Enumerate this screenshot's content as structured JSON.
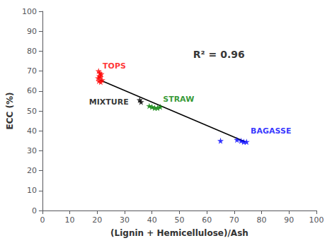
{
  "chart_data": {
    "type": "scatter",
    "xlabel": "(Lignin + Hemicellulose)/Ash",
    "ylabel": "ECC (%)",
    "xlim": [
      0,
      100
    ],
    "ylim": [
      0,
      100
    ],
    "xticks": [
      0,
      10,
      20,
      30,
      40,
      50,
      60,
      70,
      80,
      90,
      100
    ],
    "yticks": [
      0,
      10,
      20,
      30,
      40,
      50,
      60,
      70,
      80,
      90,
      100
    ],
    "grid": false,
    "series": [
      {
        "type": "line",
        "color": "black",
        "line_style": "solid",
        "x": [
          21.0,
          74.0
        ],
        "y": [
          65.5,
          34.5
        ]
      },
      {
        "type": "scatter",
        "marker": "star",
        "color": "red",
        "x": [
          20.5,
          21.0,
          21.5,
          20.8,
          21.2,
          20.3,
          21.8,
          20.6,
          21.3
        ],
        "y": [
          70.0,
          69.0,
          68.5,
          67.5,
          67.0,
          66.5,
          65.5,
          65.0,
          64.5
        ]
      },
      {
        "type": "scatter",
        "marker": "star",
        "color": "black",
        "x": [
          35.5,
          36.0
        ],
        "y": [
          55.5,
          54.5
        ]
      },
      {
        "type": "scatter",
        "marker": "star",
        "color": "green",
        "x": [
          39.0,
          40.0,
          41.0,
          42.0,
          43.0
        ],
        "y": [
          52.5,
          52.0,
          51.5,
          51.5,
          52.0
        ]
      },
      {
        "type": "scatter",
        "marker": "star",
        "color": "blue",
        "x": [
          65.0,
          71.0,
          72.5,
          73.5,
          74.5
        ],
        "y": [
          35.0,
          35.5,
          35.0,
          34.5,
          34.5
        ]
      }
    ],
    "annotations": [
      {
        "text": "TOPS",
        "x": 22.0,
        "y": 70.5,
        "color": "red"
      },
      {
        "text": "MIXTURE",
        "x": 17.0,
        "y": 52.5,
        "color": "black"
      },
      {
        "text": "STRAW",
        "x": 44.0,
        "y": 54.0,
        "color": "green"
      },
      {
        "text": "BAGASSE",
        "x": 76.0,
        "y": 38.0,
        "color": "blue"
      },
      {
        "text": "R² = 0.96",
        "x": 55,
        "y": 76,
        "color": "black"
      }
    ]
  }
}
